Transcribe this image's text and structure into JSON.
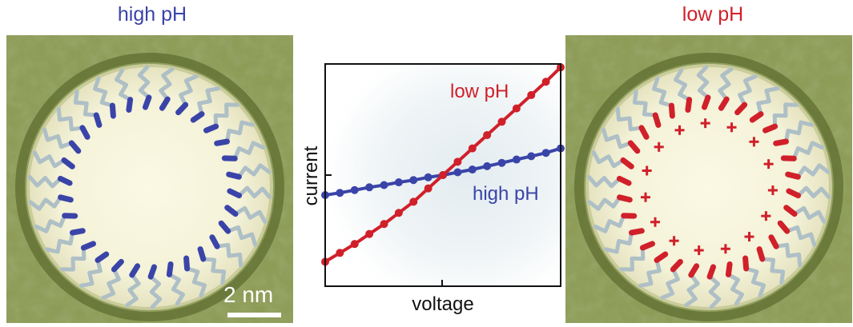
{
  "panels": {
    "left_title": "high pH",
    "right_title": "low pH",
    "scale_bar_label": "2 nm"
  },
  "colors": {
    "high_ph": "#3a44a8",
    "low_ph": "#d0202a",
    "background_stain": "#7f8f4a",
    "pore_interior": "#f4f2d8",
    "chain": "#aebfc6"
  },
  "chart_data": {
    "type": "line",
    "xlabel": "voltage",
    "ylabel": "current",
    "xlim": [
      -1,
      1
    ],
    "ylim": [
      -1,
      1
    ],
    "grid": false,
    "series": [
      {
        "name": "low pH",
        "color": "#d0202a",
        "x": [
          -1.0,
          -0.875,
          -0.75,
          -0.625,
          -0.5,
          -0.375,
          -0.25,
          -0.125,
          0.0,
          0.125,
          0.25,
          0.375,
          0.5,
          0.625,
          0.75,
          0.875,
          1.0
        ],
        "y": [
          -0.78,
          -0.7,
          -0.62,
          -0.53,
          -0.44,
          -0.34,
          -0.24,
          -0.12,
          0.0,
          0.12,
          0.24,
          0.36,
          0.48,
          0.6,
          0.72,
          0.84,
          0.97
        ]
      },
      {
        "name": "high pH",
        "color": "#3a44a8",
        "x": [
          -1.0,
          -0.875,
          -0.75,
          -0.625,
          -0.5,
          -0.375,
          -0.25,
          -0.125,
          0.0,
          0.125,
          0.25,
          0.375,
          0.5,
          0.625,
          0.75,
          0.875,
          1.0
        ],
        "y": [
          -0.18,
          -0.16,
          -0.135,
          -0.11,
          -0.09,
          -0.065,
          -0.045,
          -0.02,
          0.0,
          0.025,
          0.05,
          0.08,
          0.11,
          0.14,
          0.17,
          0.2,
          0.24
        ]
      }
    ],
    "annotations": [
      {
        "text": "low pH",
        "series": "low pH"
      },
      {
        "text": "high pH",
        "series": "high pH"
      }
    ]
  }
}
